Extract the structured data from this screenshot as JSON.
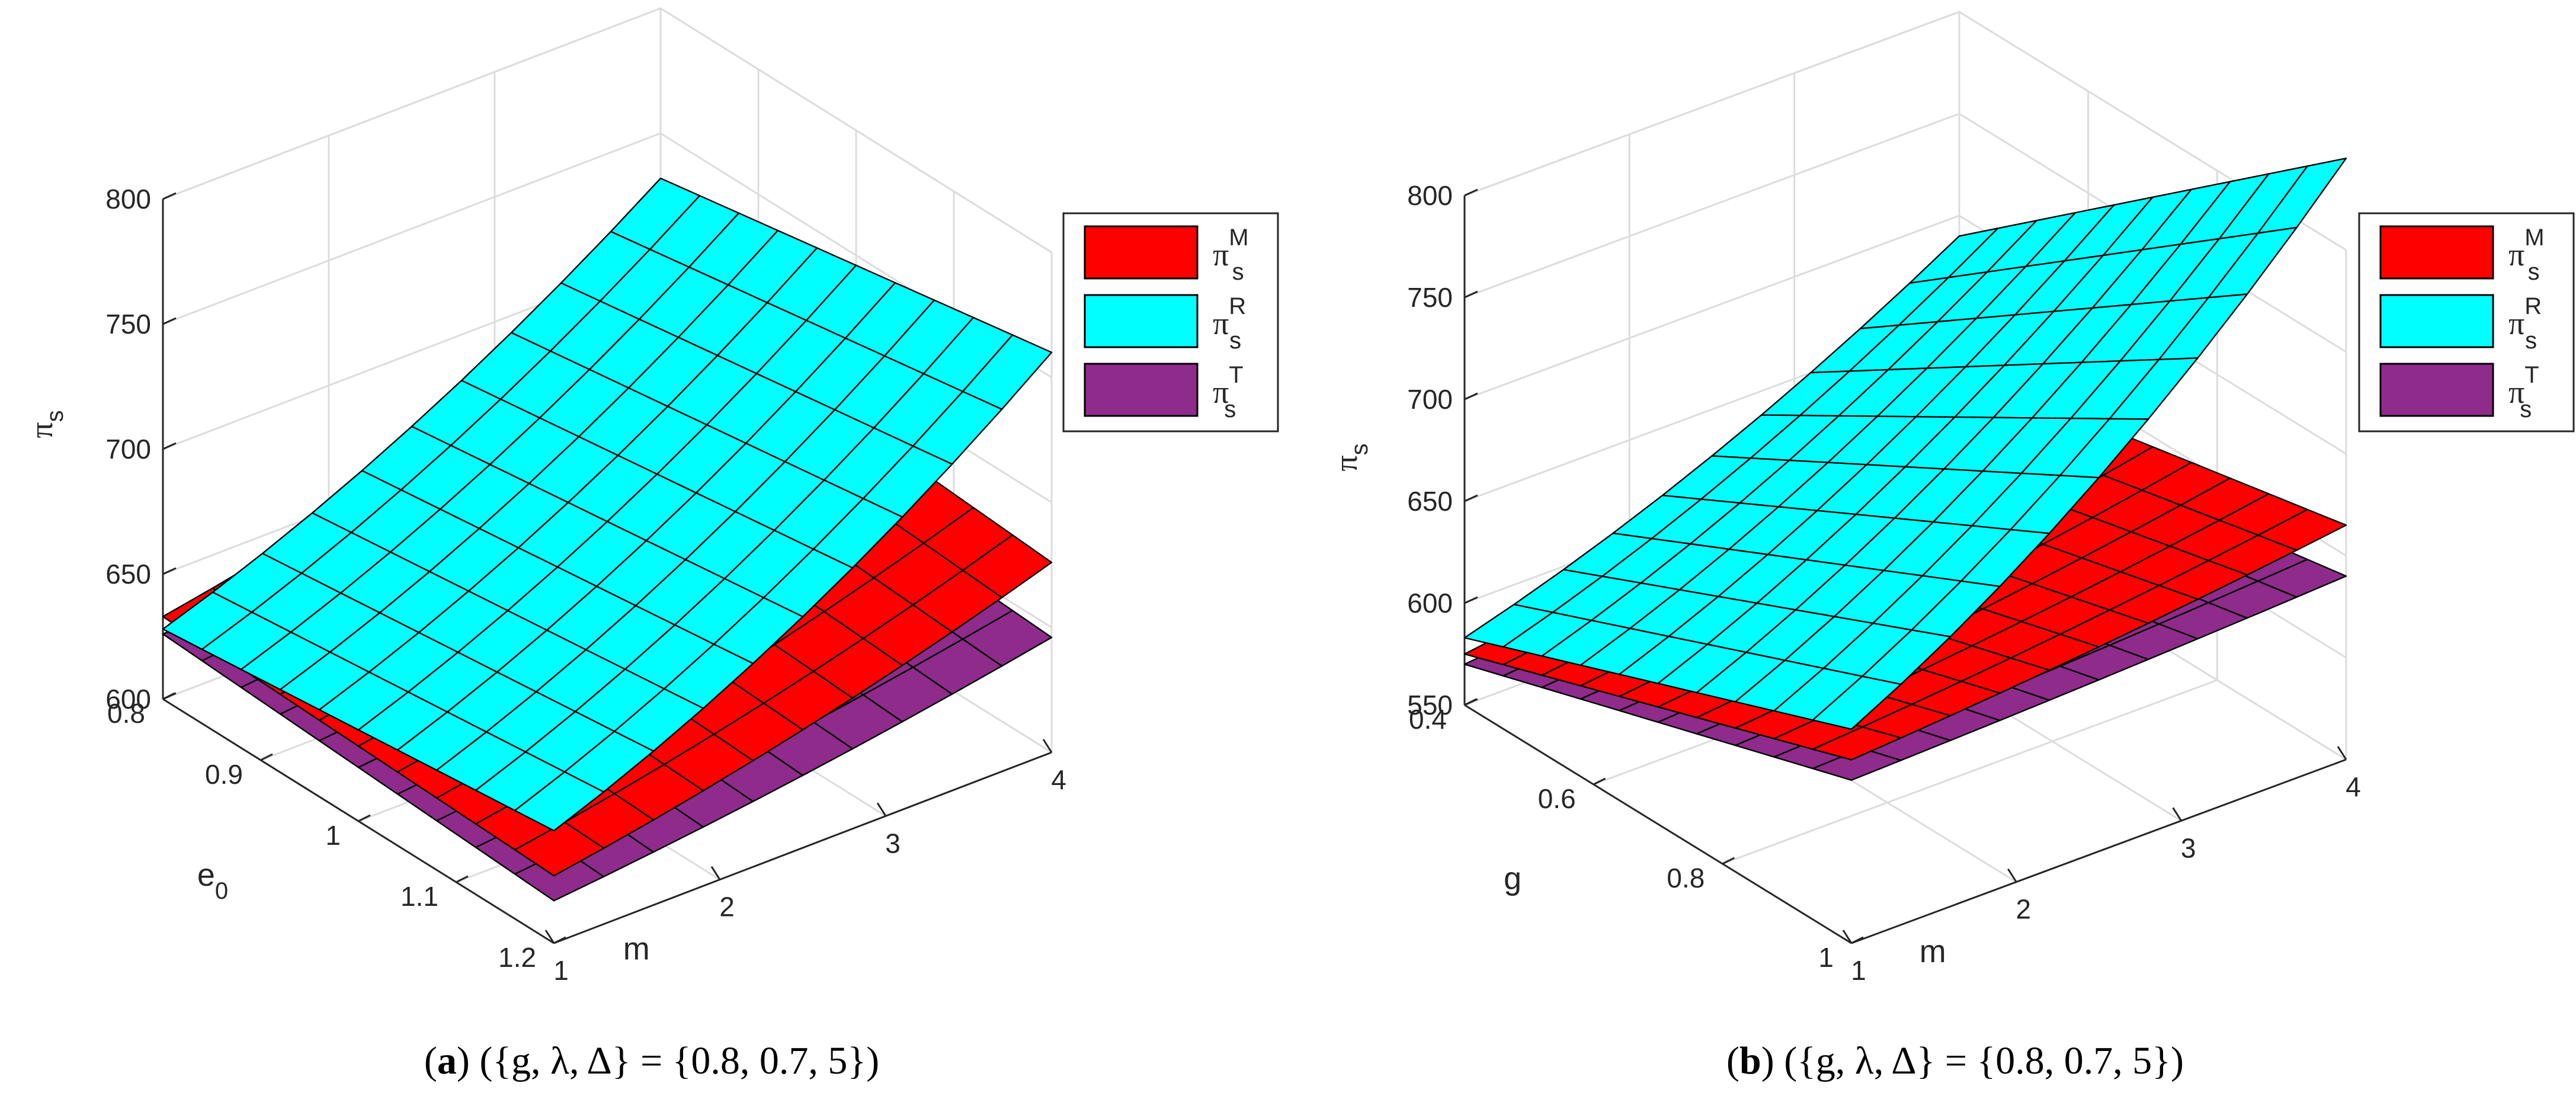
{
  "chart_data": [
    {
      "id": "a",
      "type": "surface3d",
      "caption": {
        "label": "a",
        "text": "({g, λ, Δ} = {0.8, 0.7, 5})"
      },
      "xlabel": "m",
      "ylabel": "e",
      "ylabel_sub": "0",
      "zlabel": "π",
      "zlabel_sub": "s",
      "x_ticks": [
        "1",
        "2",
        "3",
        "4"
      ],
      "y_ticks": [
        "0.8",
        "0.9",
        "1",
        "1.1",
        "1.2"
      ],
      "z_ticks": [
        "600",
        "650",
        "700",
        "750",
        "800"
      ],
      "xlim": [
        1,
        4
      ],
      "ylim": [
        0.8,
        1.2
      ],
      "zlim": [
        600,
        800
      ],
      "legend": [
        "π_s^M",
        "π_s^R",
        "π_s^T"
      ],
      "series": [
        {
          "name": "π_s^M",
          "color": "#ff0000",
          "corners": {
            "m1_lo": 633,
            "m1_hi": 627,
            "m4_lo": 688,
            "m4_hi": 676
          }
        },
        {
          "name": "π_s^R",
          "color": "#00ffff",
          "corners": {
            "m1_lo": 628,
            "m1_hi": 645,
            "m4_lo": 732,
            "m4_hi": 760
          }
        },
        {
          "name": "π_s^T",
          "color": "#8e2b8b",
          "corners": {
            "m1_lo": 626,
            "m1_hi": 617,
            "m4_lo": 656,
            "m4_hi": 646
          }
        }
      ]
    },
    {
      "id": "b",
      "type": "surface3d",
      "caption": {
        "label": "b",
        "text": "({g, λ, Δ} = {0.8, 0.7, 5})"
      },
      "xlabel": "m",
      "ylabel": "g",
      "zlabel": "π",
      "zlabel_sub": "s",
      "x_ticks": [
        "1",
        "2",
        "3",
        "4"
      ],
      "y_ticks": [
        "0.4",
        "0.6",
        "0.8",
        "1"
      ],
      "z_ticks": [
        "550",
        "600",
        "650",
        "700",
        "750",
        "800"
      ],
      "xlim": [
        1,
        4
      ],
      "ylim": [
        0.4,
        1.0
      ],
      "zlim": [
        550,
        800
      ],
      "legend": [
        "π_s^M",
        "π_s^R",
        "π_s^T"
      ],
      "series": [
        {
          "name": "π_s^M",
          "color": "#ff0000",
          "corners": {
            "m1_lo": 575,
            "m1_hi": 640,
            "m4_lo": 625,
            "m4_hi": 665
          }
        },
        {
          "name": "π_s^R",
          "color": "#00ffff",
          "corners": {
            "m1_lo": 583,
            "m1_hi": 655,
            "m4_lo": 690,
            "m4_hi": 845
          }
        },
        {
          "name": "π_s^T",
          "color": "#8e2b8b",
          "corners": {
            "m1_lo": 570,
            "m1_hi": 630,
            "m4_lo": 605,
            "m4_hi": 640
          }
        }
      ]
    }
  ]
}
